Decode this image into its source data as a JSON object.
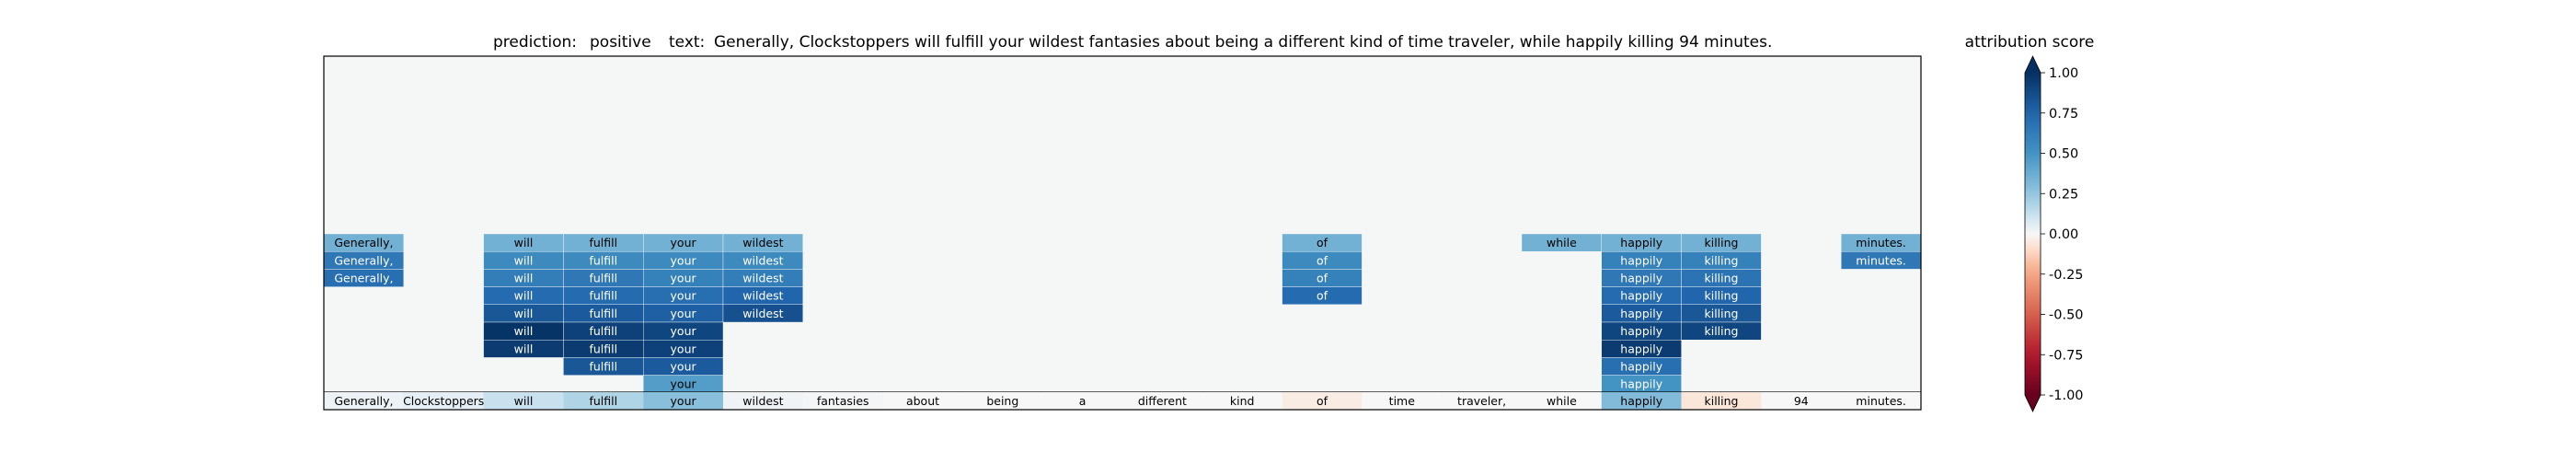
{
  "chart_data": {
    "type": "heatmap",
    "title": {
      "prediction_label": "prediction:",
      "prediction": "positive",
      "text_label": "text:",
      "text": "Generally, Clockstoppers will fulfill your wildest fantasies about being a different kind of time traveler, while happily killing 94 minutes."
    },
    "tokens": [
      "Generally,",
      "Clockstoppers",
      "will",
      "fulfill",
      "your",
      "wildest",
      "fantasies",
      "about",
      "being",
      "a",
      "different",
      "kind",
      "of",
      "time",
      "traveler,",
      "while",
      "happily",
      "killing",
      "94",
      "minutes."
    ],
    "token_scores": [
      0.03,
      0.05,
      0.12,
      0.18,
      0.28,
      0.02,
      0.01,
      0.0,
      0.0,
      0.0,
      0.0,
      0.0,
      -0.04,
      0.0,
      0.0,
      0.0,
      0.3,
      -0.06,
      0.0,
      0.0
    ],
    "rows": [
      [
        0.35,
        0,
        0.35,
        0.35,
        0.35,
        0.35,
        0,
        0,
        0,
        0,
        0,
        0,
        0.35,
        0,
        0,
        0.35,
        0.35,
        0.35,
        0,
        0.35
      ],
      [
        0.65,
        0,
        0.55,
        0.55,
        0.55,
        0.55,
        0,
        0,
        0,
        0,
        0,
        0,
        0.55,
        0,
        0,
        0,
        0.6,
        0.6,
        0,
        0.65
      ],
      [
        0.7,
        0,
        0.62,
        0.65,
        0.6,
        0.62,
        0,
        0,
        0,
        0,
        0,
        0,
        0.6,
        0,
        0,
        0,
        0.65,
        0.68,
        0,
        0
      ],
      [
        0,
        0,
        0.72,
        0.72,
        0.7,
        0.75,
        0,
        0,
        0,
        0,
        0,
        0,
        0.72,
        0,
        0,
        0,
        0.72,
        0.75,
        0,
        0
      ],
      [
        0,
        0,
        0.82,
        0.8,
        0.78,
        0.85,
        0,
        0,
        0,
        0,
        0,
        0,
        0,
        0,
        0,
        0,
        0.8,
        0.82,
        0,
        0
      ],
      [
        0,
        0,
        0.98,
        0.92,
        0.9,
        0,
        0,
        0,
        0,
        0,
        0,
        0,
        0,
        0,
        0,
        0,
        0.9,
        0.9,
        0,
        0
      ],
      [
        0,
        0,
        0.95,
        0.95,
        0.92,
        0,
        0,
        0,
        0,
        0,
        0,
        0,
        0,
        0,
        0,
        0,
        0.95,
        0,
        0,
        0
      ],
      [
        0,
        0,
        0,
        0.82,
        0.8,
        0,
        0,
        0,
        0,
        0,
        0,
        0,
        0,
        0,
        0,
        0,
        0.7,
        0,
        0,
        0
      ],
      [
        0,
        0,
        0,
        0,
        0.45,
        0,
        0,
        0,
        0,
        0,
        0,
        0,
        0,
        0,
        0,
        0,
        0.5,
        0,
        0,
        0
      ]
    ],
    "colorbar": {
      "label": "attribution score",
      "min": -1.0,
      "max": 1.0,
      "ticks": [
        "1.00",
        "0.75",
        "0.50",
        "0.25",
        "0.00",
        "-0.25",
        "-0.50",
        "-0.75",
        "-1.00"
      ],
      "tick_values": [
        1.0,
        0.75,
        0.5,
        0.25,
        0.0,
        -0.25,
        -0.5,
        -0.75,
        -1.0
      ],
      "colormap": "RdBu"
    },
    "colors": {
      "background_cell": "#f5f7f7",
      "positive_max": "#053061",
      "negative_max": "#67001f",
      "neutral": "#f7f7f7"
    }
  }
}
